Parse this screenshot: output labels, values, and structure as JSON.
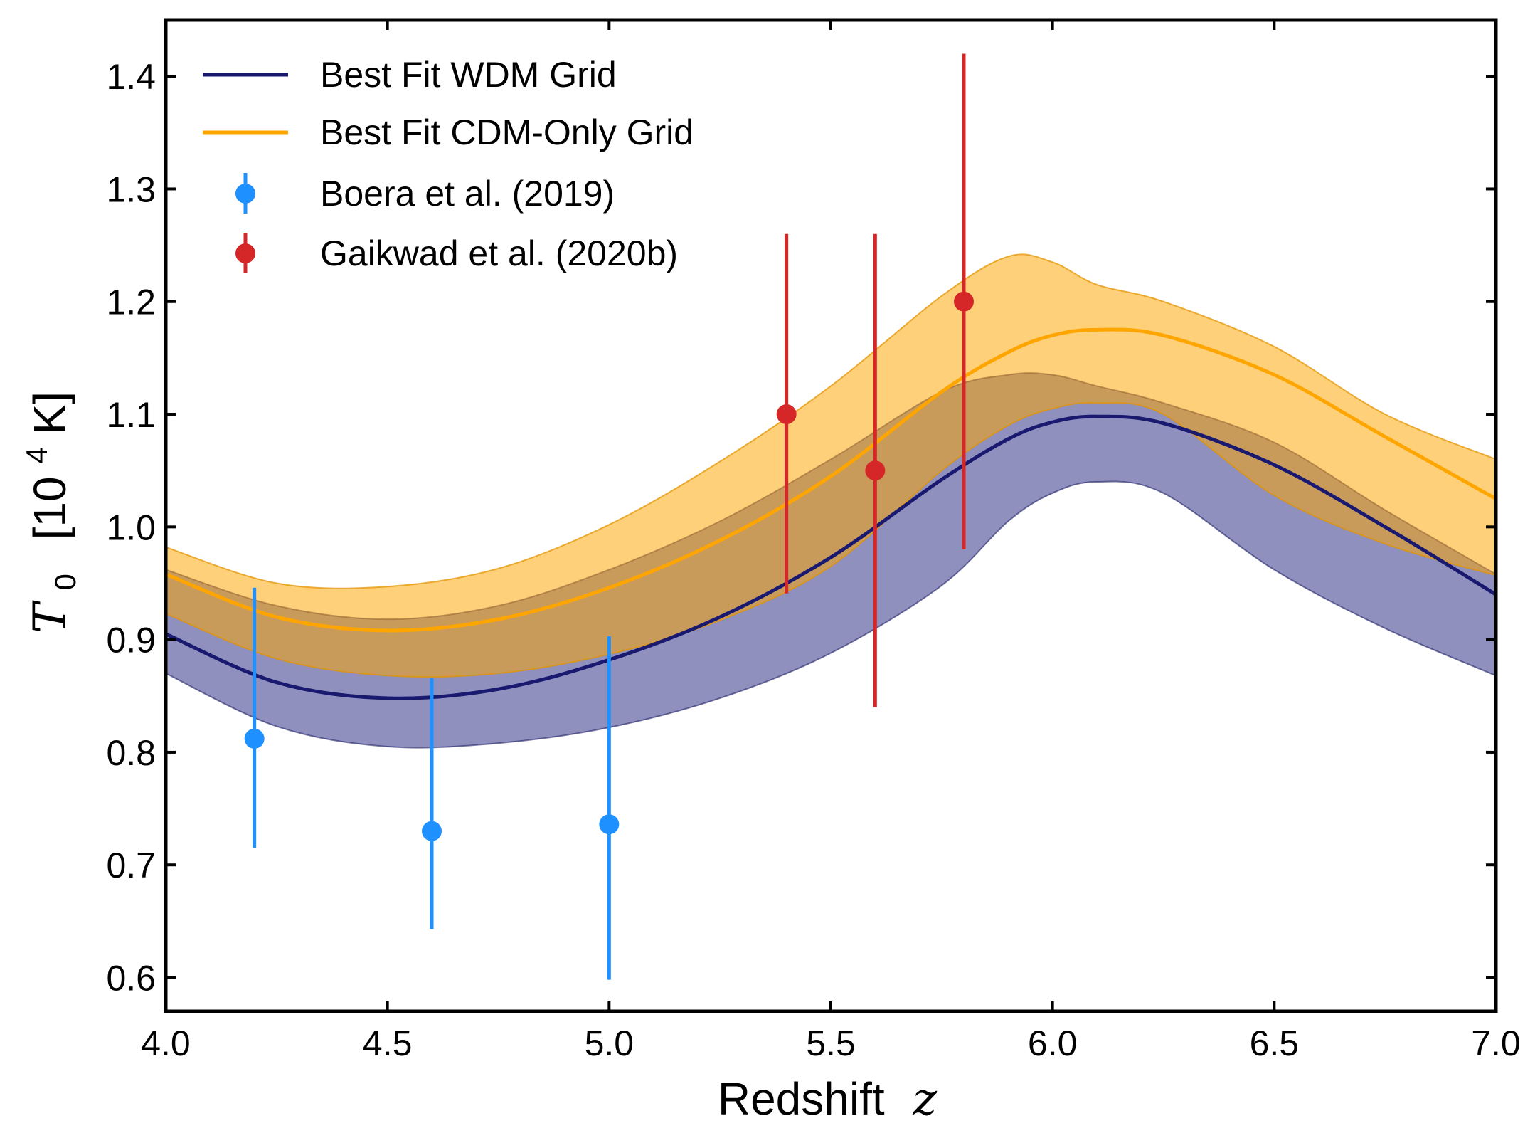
{
  "chart_data": {
    "type": "line",
    "title": "",
    "xlabel": "Redshift",
    "xlabel_math": "z",
    "ylabel_math": "T",
    "ylabel_sub": "0",
    "ylabel_unit_open": "[10",
    "ylabel_unit_exp": "4",
    "ylabel_unit_close": " K]",
    "xlim": [
      4.0,
      7.0
    ],
    "ylim": [
      0.57,
      1.45
    ],
    "x_ticks": [
      4.0,
      4.5,
      5.0,
      5.5,
      6.0,
      6.5,
      7.0
    ],
    "x_tick_labels": [
      "4.0",
      "4.5",
      "5.0",
      "5.5",
      "6.0",
      "6.5",
      "7.0"
    ],
    "y_ticks": [
      0.6,
      0.7,
      0.8,
      0.9,
      1.0,
      1.1,
      1.2,
      1.3,
      1.4
    ],
    "y_tick_labels": [
      "0.6",
      "0.7",
      "0.8",
      "0.9",
      "1.0",
      "1.1",
      "1.2",
      "1.3",
      "1.4"
    ],
    "grid": false,
    "legend_position": "top-left",
    "x": [
      4.0,
      4.25,
      4.5,
      4.75,
      5.0,
      5.25,
      5.5,
      5.75,
      5.9,
      6.0,
      6.1,
      6.25,
      6.5,
      6.75,
      7.0
    ],
    "series": [
      {
        "name": "Best Fit WDM Grid",
        "color": "#191970",
        "band_color": "#4b4c96",
        "values": [
          0.905,
          0.862,
          0.848,
          0.856,
          0.882,
          0.92,
          0.973,
          1.042,
          1.078,
          1.093,
          1.098,
          1.092,
          1.055,
          1.0,
          0.94
        ],
        "lower": [
          0.87,
          0.823,
          0.805,
          0.808,
          0.822,
          0.848,
          0.888,
          0.948,
          1.005,
          1.03,
          1.04,
          1.03,
          0.962,
          0.91,
          0.868
        ],
        "upper": [
          0.962,
          0.93,
          0.918,
          0.93,
          0.962,
          1.005,
          1.06,
          1.12,
          1.135,
          1.135,
          1.125,
          1.11,
          1.075,
          1.015,
          0.958
        ]
      },
      {
        "name": "Best Fit CDM-Only Grid",
        "color": "#FFA500",
        "band_color": "#FFA500",
        "values": [
          0.958,
          0.92,
          0.908,
          0.918,
          0.946,
          0.988,
          1.045,
          1.12,
          1.155,
          1.17,
          1.175,
          1.17,
          1.135,
          1.08,
          1.025
        ],
        "lower": [
          0.923,
          0.883,
          0.868,
          0.87,
          0.887,
          0.917,
          0.965,
          1.05,
          1.09,
          1.105,
          1.11,
          1.1,
          1.028,
          0.985,
          0.957
        ],
        "upper": [
          0.982,
          0.95,
          0.947,
          0.963,
          1.002,
          1.058,
          1.125,
          1.205,
          1.24,
          1.235,
          1.215,
          1.2,
          1.16,
          1.1,
          1.06
        ]
      }
    ],
    "points": [
      {
        "name": "Boera et al. (2019)",
        "color": "#1E90FF",
        "x": [
          4.2,
          4.6,
          5.0
        ],
        "y": [
          0.812,
          0.73,
          0.736
        ],
        "y_low": [
          0.715,
          0.643,
          0.598
        ],
        "y_high": [
          0.946,
          0.866,
          0.903
        ]
      },
      {
        "name": "Gaikwad et al. (2020b)",
        "color": "#D62728",
        "x": [
          5.4,
          5.6,
          5.8
        ],
        "y": [
          1.1,
          1.05,
          1.2
        ],
        "y_low": [
          0.941,
          0.84,
          0.98
        ],
        "y_high": [
          1.26,
          1.26,
          1.42
        ]
      }
    ]
  }
}
